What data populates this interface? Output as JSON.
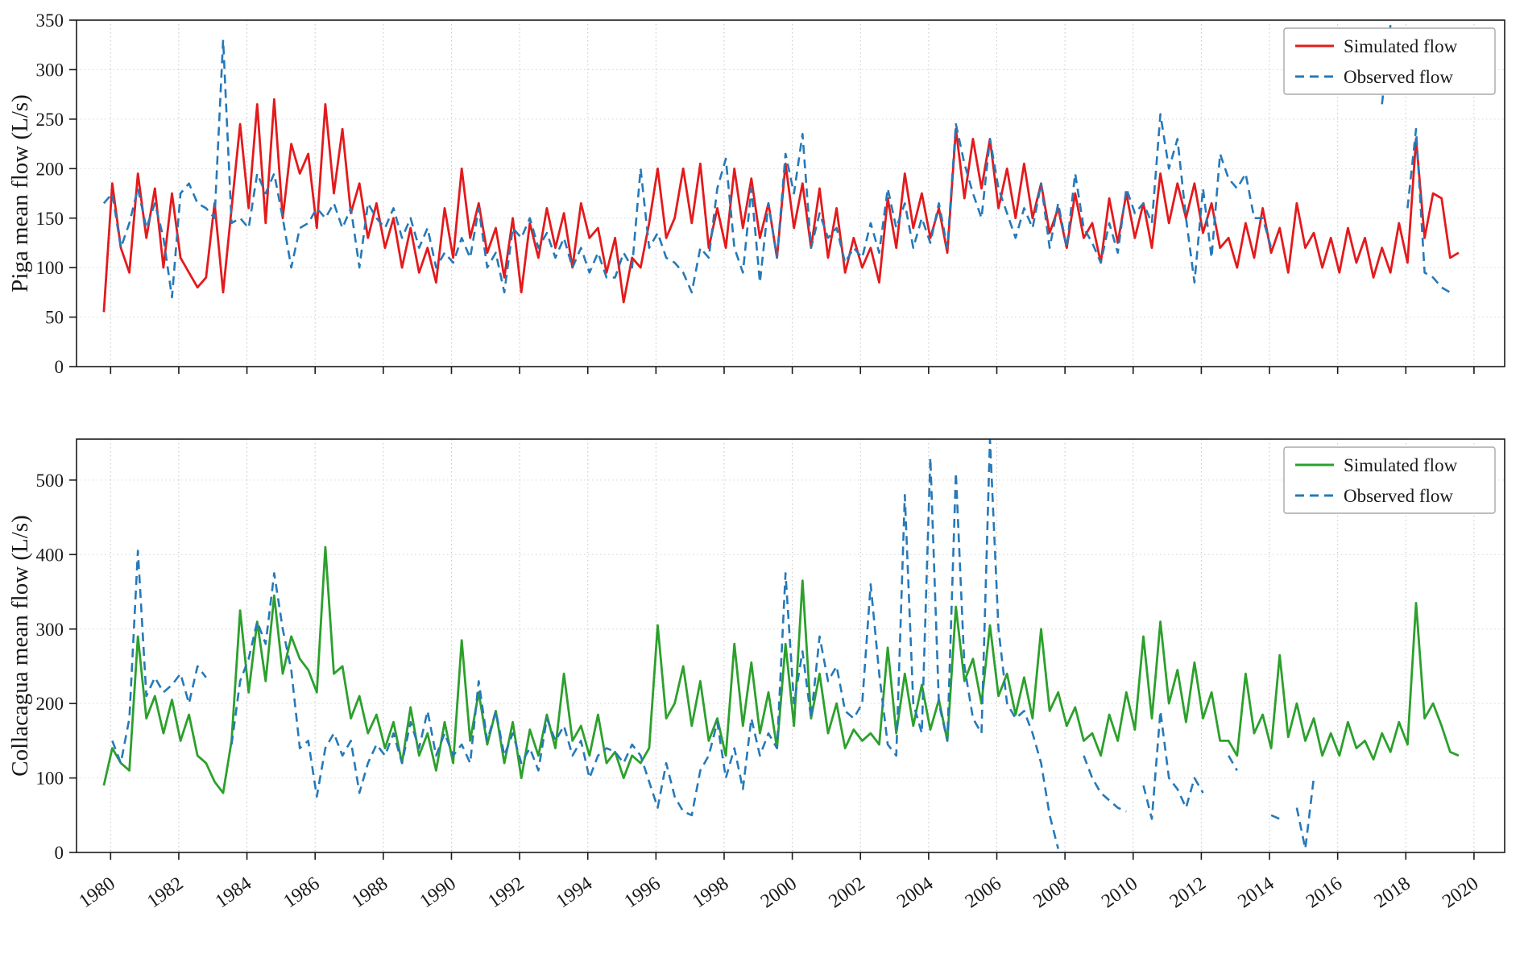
{
  "figure": {
    "background": "#ffffff",
    "grid_color": "#c4c4c4",
    "spine_color": "#1a1a1a",
    "observed_color": "#2679b8",
    "piga_simulated_color": "#e41a1c",
    "collacagua_simulated_color": "#2ca02c"
  },
  "chart_data": [
    {
      "type": "line",
      "panel": "top",
      "ylabel": "Piga mean flow (L/s)",
      "ylim": [
        0,
        350
      ],
      "yticks": [
        0,
        50,
        100,
        150,
        200,
        250,
        300,
        350
      ],
      "xlim": [
        1979.0,
        2020.9
      ],
      "xticks": [
        1980,
        1982,
        1984,
        1986,
        1988,
        1990,
        1992,
        1994,
        1996,
        1998,
        2000,
        2002,
        2004,
        2006,
        2008,
        2010,
        2012,
        2014,
        2016,
        2018,
        2020
      ],
      "show_x_tick_labels": false,
      "grid": true,
      "x_start": 1979.8,
      "x_step": 0.25,
      "legend": {
        "position": "upper right",
        "entries": [
          {
            "label": "Simulated flow",
            "color": "#e41a1c",
            "dash": "solid"
          },
          {
            "label": "Observed flow",
            "color": "#2679b8",
            "dash": "dashed"
          }
        ]
      },
      "series": [
        {
          "name": "Simulated flow",
          "color": "#e41a1c",
          "style": "solid",
          "values": [
            55,
            185,
            120,
            95,
            195,
            130,
            180,
            100,
            175,
            110,
            95,
            80,
            90,
            165,
            75,
            160,
            245,
            160,
            265,
            145,
            270,
            150,
            225,
            195,
            215,
            140,
            265,
            175,
            240,
            155,
            185,
            130,
            165,
            120,
            150,
            100,
            140,
            95,
            120,
            85,
            160,
            110,
            200,
            130,
            165,
            115,
            140,
            90,
            150,
            75,
            145,
            110,
            160,
            120,
            155,
            100,
            165,
            130,
            140,
            95,
            130,
            65,
            110,
            100,
            145,
            200,
            130,
            150,
            200,
            145,
            205,
            120,
            160,
            120,
            200,
            140,
            190,
            130,
            165,
            110,
            205,
            140,
            185,
            120,
            180,
            110,
            160,
            95,
            130,
            100,
            120,
            85,
            170,
            120,
            195,
            140,
            175,
            130,
            160,
            115,
            240,
            170,
            230,
            180,
            230,
            160,
            200,
            150,
            205,
            150,
            185,
            135,
            160,
            120,
            175,
            130,
            145,
            105,
            170,
            125,
            175,
            130,
            165,
            120,
            195,
            145,
            185,
            150,
            185,
            135,
            165,
            120,
            130,
            100,
            145,
            110,
            160,
            115,
            140,
            95,
            165,
            120,
            135,
            100,
            130,
            95,
            140,
            105,
            130,
            90,
            120,
            95,
            145,
            105,
            230,
            130,
            175,
            170,
            110,
            115
          ]
        },
        {
          "name": "Observed flow",
          "color": "#2679b8",
          "style": "dashed",
          "values": [
            165,
            175,
            120,
            145,
            180,
            140,
            165,
            130,
            70,
            175,
            185,
            165,
            160,
            150,
            330,
            145,
            150,
            140,
            195,
            175,
            195,
            150,
            100,
            140,
            145,
            160,
            150,
            165,
            140,
            160,
            100,
            165,
            150,
            140,
            160,
            130,
            150,
            120,
            140,
            100,
            115,
            105,
            130,
            110,
            160,
            100,
            115,
            75,
            140,
            130,
            150,
            120,
            135,
            110,
            130,
            100,
            120,
            95,
            115,
            90,
            90,
            115,
            100,
            200,
            120,
            135,
            110,
            105,
            95,
            75,
            120,
            110,
            180,
            210,
            120,
            95,
            180,
            85,
            165,
            110,
            215,
            175,
            235,
            120,
            155,
            130,
            140,
            105,
            120,
            110,
            145,
            115,
            180,
            140,
            165,
            120,
            150,
            125,
            165,
            120,
            245,
            205,
            175,
            150,
            230,
            180,
            155,
            130,
            160,
            140,
            185,
            120,
            165,
            120,
            195,
            140,
            125,
            105,
            145,
            115,
            180,
            155,
            165,
            145,
            255,
            200,
            230,
            150,
            85,
            180,
            110,
            215,
            190,
            180,
            195,
            150,
            150,
            120,
            null,
            null,
            null,
            null,
            null,
            null,
            null,
            null,
            null,
            null,
            null,
            null,
            265,
            345,
            null,
            160,
            240,
            95,
            90,
            80,
            75,
            null
          ]
        }
      ]
    },
    {
      "type": "line",
      "panel": "bottom",
      "ylabel": "Collacagua mean flow (L/s)",
      "ylim": [
        0,
        555
      ],
      "yticks": [
        0,
        100,
        200,
        300,
        400,
        500
      ],
      "xlim": [
        1979.0,
        2020.9
      ],
      "xticks": [
        1980,
        1982,
        1984,
        1986,
        1988,
        1990,
        1992,
        1994,
        1996,
        1998,
        2000,
        2002,
        2004,
        2006,
        2008,
        2010,
        2012,
        2014,
        2016,
        2018,
        2020
      ],
      "show_x_tick_labels": true,
      "grid": true,
      "x_start": 1979.8,
      "x_step": 0.25,
      "legend": {
        "position": "upper right",
        "entries": [
          {
            "label": "Simulated flow",
            "color": "#2ca02c",
            "dash": "solid"
          },
          {
            "label": "Observed flow",
            "color": "#2679b8",
            "dash": "dashed"
          }
        ]
      },
      "series": [
        {
          "name": "Simulated flow",
          "color": "#2ca02c",
          "style": "solid",
          "values": [
            90,
            140,
            120,
            110,
            290,
            180,
            210,
            160,
            205,
            150,
            185,
            130,
            120,
            95,
            80,
            150,
            325,
            215,
            310,
            230,
            345,
            240,
            290,
            260,
            245,
            215,
            410,
            240,
            250,
            180,
            210,
            160,
            185,
            140,
            175,
            120,
            195,
            130,
            160,
            110,
            175,
            120,
            285,
            150,
            215,
            145,
            190,
            120,
            175,
            100,
            165,
            130,
            185,
            140,
            240,
            150,
            170,
            130,
            185,
            120,
            135,
            100,
            130,
            120,
            140,
            305,
            180,
            200,
            250,
            170,
            230,
            150,
            180,
            130,
            280,
            170,
            255,
            160,
            215,
            140,
            280,
            170,
            365,
            180,
            240,
            160,
            200,
            140,
            165,
            150,
            160,
            145,
            275,
            160,
            240,
            170,
            225,
            165,
            205,
            150,
            330,
            230,
            260,
            200,
            305,
            210,
            240,
            185,
            235,
            180,
            300,
            190,
            215,
            170,
            195,
            150,
            160,
            130,
            185,
            150,
            215,
            165,
            290,
            180,
            310,
            200,
            245,
            175,
            255,
            180,
            215,
            150,
            150,
            130,
            240,
            160,
            185,
            140,
            265,
            155,
            200,
            150,
            180,
            130,
            160,
            130,
            175,
            140,
            150,
            125,
            160,
            135,
            175,
            145,
            335,
            180,
            200,
            170,
            135,
            130
          ]
        },
        {
          "name": "Observed flow",
          "color": "#2679b8",
          "style": "dashed",
          "values": [
            null,
            150,
            120,
            180,
            405,
            210,
            235,
            215,
            225,
            240,
            200,
            250,
            235,
            null,
            null,
            145,
            230,
            260,
            310,
            280,
            375,
            300,
            245,
            140,
            150,
            75,
            140,
            160,
            130,
            150,
            80,
            120,
            145,
            130,
            160,
            120,
            175,
            140,
            190,
            130,
            160,
            130,
            145,
            120,
            230,
            150,
            190,
            130,
            160,
            120,
            140,
            110,
            180,
            150,
            170,
            130,
            150,
            100,
            130,
            140,
            135,
            120,
            145,
            130,
            95,
            60,
            120,
            75,
            55,
            50,
            110,
            130,
            175,
            100,
            140,
            85,
            180,
            130,
            160,
            140,
            375,
            200,
            270,
            180,
            290,
            230,
            250,
            190,
            180,
            200,
            360,
            240,
            145,
            130,
            480,
            200,
            160,
            530,
            200,
            150,
            510,
            250,
            180,
            160,
            555,
            300,
            200,
            180,
            190,
            160,
            120,
            50,
            5,
            null,
            null,
            130,
            100,
            80,
            70,
            60,
            55,
            null,
            90,
            45,
            190,
            100,
            85,
            60,
            100,
            80,
            null,
            null,
            130,
            110,
            null,
            null,
            null,
            50,
            45,
            null,
            60,
            5,
            100,
            null,
            null,
            null,
            null,
            null,
            null,
            null,
            null,
            null,
            null,
            null,
            null,
            null,
            null,
            null,
            null,
            null
          ]
        }
      ]
    }
  ]
}
